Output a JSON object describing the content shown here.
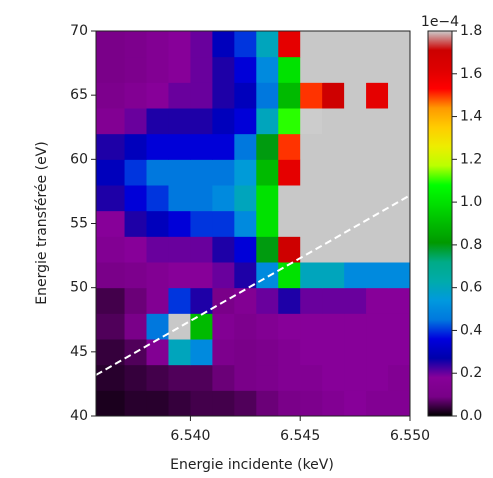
{
  "chart_data": {
    "type": "heatmap",
    "xlabel": "Energie incidente (keV)",
    "ylabel": "Energie transférée (eV)",
    "x": [
      6.5357,
      6.537,
      6.538,
      6.539,
      6.54,
      6.541,
      6.542,
      6.543,
      6.544,
      6.545,
      6.546,
      6.547,
      6.548,
      6.549,
      6.55
    ],
    "y": [
      40,
      42,
      44,
      46,
      48,
      50,
      52,
      54,
      56,
      58,
      60,
      62,
      64,
      66,
      68,
      70
    ],
    "z": [
      [
        0.02,
        0.03,
        0.03,
        0.04,
        0.05,
        0.05,
        0.06,
        0.08,
        0.1,
        0.12,
        0.15,
        0.18,
        0.15,
        0.15
      ],
      [
        0.03,
        0.04,
        0.05,
        0.06,
        0.06,
        0.08,
        0.1,
        0.12,
        0.15,
        0.15,
        0.18,
        0.18,
        0.18,
        0.15
      ],
      [
        0.04,
        0.06,
        0.15,
        0.6,
        0.5,
        0.12,
        0.1,
        0.12,
        0.15,
        0.18,
        0.18,
        0.18,
        0.18,
        0.18
      ],
      [
        0.06,
        0.1,
        0.45,
        2.0,
        0.9,
        0.15,
        0.12,
        0.15,
        0.18,
        0.18,
        0.18,
        0.18,
        0.18,
        0.18
      ],
      [
        0.05,
        0.08,
        0.15,
        0.4,
        0.25,
        0.1,
        0.15,
        0.2,
        0.25,
        0.2,
        0.2,
        0.2,
        0.18,
        0.18
      ],
      [
        0.1,
        0.12,
        0.15,
        0.18,
        0.18,
        0.2,
        0.25,
        0.5,
        1.0,
        0.6,
        0.6,
        0.5,
        0.5,
        0.5
      ],
      [
        0.15,
        0.18,
        0.2,
        0.2,
        0.2,
        0.25,
        0.35,
        0.8,
        1.7,
        2.5,
        2.5,
        2.5,
        2.5,
        2.5
      ],
      [
        0.18,
        0.25,
        0.3,
        0.35,
        0.4,
        0.4,
        0.5,
        1.0,
        2.5,
        2.5,
        2.5,
        2.5,
        2.5,
        2.5
      ],
      [
        0.25,
        0.35,
        0.4,
        0.45,
        0.45,
        0.5,
        0.6,
        1.0,
        2.0,
        2.5,
        2.5,
        2.5,
        2.5,
        2.5
      ],
      [
        0.3,
        0.4,
        0.45,
        0.45,
        0.45,
        0.45,
        0.55,
        0.9,
        1.6,
        2.5,
        2.5,
        2.5,
        2.5,
        2.5
      ],
      [
        0.25,
        0.3,
        0.35,
        0.35,
        0.35,
        0.35,
        0.45,
        0.8,
        1.5,
        2.5,
        2.5,
        2.5,
        2.5,
        2.5
      ],
      [
        0.15,
        0.2,
        0.25,
        0.25,
        0.25,
        0.3,
        0.35,
        0.6,
        1.1,
        1.8,
        2.5,
        2.5,
        2.5,
        2.5
      ],
      [
        0.12,
        0.15,
        0.18,
        0.2,
        0.2,
        0.25,
        0.3,
        0.45,
        0.9,
        1.5,
        1.7,
        2.0,
        1.6,
        2.5
      ],
      [
        0.1,
        0.12,
        0.15,
        0.18,
        0.2,
        0.25,
        0.35,
        0.5,
        1.0,
        2.5,
        2.5,
        2.5,
        2.5,
        2.5
      ],
      [
        0.1,
        0.12,
        0.15,
        0.18,
        0.2,
        0.3,
        0.4,
        0.6,
        1.6,
        2.5,
        2.5,
        2.5,
        2.5,
        2.5
      ]
    ],
    "xlim": [
      6.5357,
      6.55
    ],
    "ylim": [
      40,
      70
    ],
    "xticks": [
      {
        "value": 6.54,
        "label": "6.540"
      },
      {
        "value": 6.545,
        "label": "6.545"
      },
      {
        "value": 6.55,
        "label": "6.550"
      }
    ],
    "yticks": [
      40,
      45,
      50,
      55,
      60,
      65,
      70
    ],
    "colormap": "nipy_spectral",
    "over_color": "#c8c8c8",
    "clim": [
      0,
      1.8
    ],
    "cticks": [
      {
        "value": 0,
        "label": "0.0"
      },
      {
        "value": 0.2,
        "label": "0.2"
      },
      {
        "value": 0.4,
        "label": "0.4"
      },
      {
        "value": 0.6,
        "label": "0.6"
      },
      {
        "value": 0.8,
        "label": "0.8"
      },
      {
        "value": 1.0,
        "label": "1.0"
      },
      {
        "value": 1.2,
        "label": "1.2"
      },
      {
        "value": 1.4,
        "label": "1.4"
      },
      {
        "value": 1.6,
        "label": "1.6"
      },
      {
        "value": 1.8,
        "label": "1.8"
      }
    ],
    "colorbar_offset": "1e−4",
    "line": {
      "x": [
        6.5357,
        6.55
      ],
      "y": [
        43.2,
        57.2
      ],
      "color": "#ffffff",
      "dashed": true
    }
  }
}
